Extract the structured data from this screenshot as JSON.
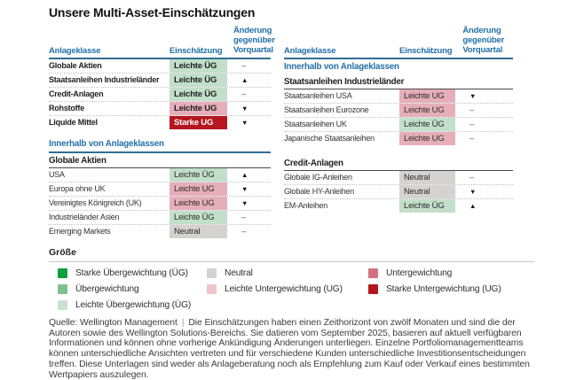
{
  "title": "Unsere Multi-Asset-Einschätzungen",
  "columns": {
    "asset": "Anlageklasse",
    "assessment": "Einschätzung",
    "change": "Änderung gegenüber Vorquartal"
  },
  "level_colors": {
    "light-og": "#c2dfca",
    "light-ug": "#e6aebb",
    "neutral": "#d5d3cf",
    "strong-ug": "#b5161f"
  },
  "left": {
    "main_rows": [
      {
        "label": "Globale Aktien",
        "assessment": "Leichte ÜG",
        "level": "light-og",
        "change": "–",
        "dir": "flat"
      },
      {
        "label": "Staatsanleihen Industrieländer",
        "assessment": "Leichte ÜG",
        "level": "light-og",
        "change": "▲",
        "dir": "up"
      },
      {
        "label": "Credit-Anlagen",
        "assessment": "Leichte ÜG",
        "level": "light-og",
        "change": "–",
        "dir": "flat"
      },
      {
        "label": "Rohstoffe",
        "assessment": "Leichte UG",
        "level": "light-ug",
        "change": "▼",
        "dir": "down"
      },
      {
        "label": "Liquide Mittel",
        "assessment": "Starke UG",
        "level": "strong-ug",
        "change": "▼",
        "dir": "down"
      }
    ],
    "section": {
      "title": "Innerhalb von Anlageklassen",
      "subheader": "Globale Aktien"
    },
    "sub_rows": [
      {
        "label": "USA",
        "assessment": "Leichte ÜG",
        "level": "light-og",
        "change": "▲",
        "dir": "up"
      },
      {
        "label": "Europa ohne UK",
        "assessment": "Leichte UG",
        "level": "light-ug",
        "change": "▼",
        "dir": "down"
      },
      {
        "label": "Vereinigtes Königreich (UK)",
        "assessment": "Leichte UG",
        "level": "light-ug",
        "change": "▼",
        "dir": "down"
      },
      {
        "label": "Industrieländer Asien",
        "assessment": "Leichte ÜG",
        "level": "light-og",
        "change": "–",
        "dir": "flat"
      },
      {
        "label": "Emerging Markets",
        "assessment": "Neutral",
        "level": "neutral",
        "change": "–",
        "dir": "flat"
      }
    ]
  },
  "right": {
    "section1": {
      "title": "Innerhalb von Anlageklassen",
      "subheader": "Staatsanleihen Industrieländer"
    },
    "rows1": [
      {
        "label": "Staatsanleihen USA",
        "assessment": "Leichte UG",
        "level": "light-ug",
        "change": "▼",
        "dir": "down"
      },
      {
        "label": "Staatsanleihen Eurozone",
        "assessment": "Leichte UG",
        "level": "light-ug",
        "change": "–",
        "dir": "flat"
      },
      {
        "label": "Staatsanleihen UK",
        "assessment": "Leichte ÜG",
        "level": "light-og",
        "change": "–",
        "dir": "flat"
      },
      {
        "label": "Japanische Staatsanleihen",
        "assessment": "Leichte UG",
        "level": "light-ug",
        "change": "–",
        "dir": "flat"
      }
    ],
    "section2": {
      "subheader": "Credit-Anlagen"
    },
    "rows2": [
      {
        "label": "Globale IG-Anleihen",
        "assessment": "Neutral",
        "level": "neutral",
        "change": "–",
        "dir": "flat"
      },
      {
        "label": "Globale HY-Anleihen",
        "assessment": "Neutral",
        "level": "neutral",
        "change": "▼",
        "dir": "down"
      },
      {
        "label": "EM-Anleihen",
        "assessment": "Leichte ÜG",
        "level": "light-og",
        "change": "▲",
        "dir": "up"
      }
    ]
  },
  "legend": {
    "title": "Größe",
    "columns": [
      [
        {
          "label": "Starke Übergewichtung (ÜG)",
          "color": "#0f9f3d"
        },
        {
          "label": "Übergewichtung",
          "color": "#7cc18c"
        },
        {
          "label": "Leichte Übergewichtung (ÜG)",
          "color": "#c9e2cf"
        }
      ],
      [
        {
          "label": "Neutral",
          "color": "#d6d3cf"
        },
        {
          "label": "Leichte Untergewichtung (UG)",
          "color": "#f0c3cb"
        }
      ],
      [
        {
          "label": "Untergewichtung",
          "color": "#d4717e"
        },
        {
          "label": "Starke Untergewichtung (UG)",
          "color": "#b4161e"
        }
      ]
    ]
  },
  "footer": {
    "source": "Quelle: Wellington Management",
    "separator": "|",
    "text": "Die Einschätzungen haben einen Zeithorizont von zwölf Monaten und sind die der Autoren sowie des Wellington Solutions-Bereichs. Sie datieren vom September 2025, basieren auf aktuell verfügbaren Informationen und können ohne vorherige Ankündigung Änderungen unterliegen. Einzelne Portfoliomanagementteams können unterschiedliche Ansichten vertreten und für verschiedene Kunden unterschiedliche Investitionsentscheidungen treffen. Diese Unterlagen sind weder als Anlageberatung noch als Empfehlung zum Kauf oder Verkauf eines bestimmten Wertpapiers auszulegen."
  }
}
